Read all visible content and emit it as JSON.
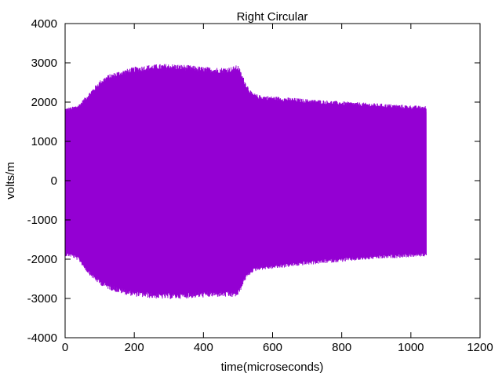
{
  "chart_data": {
    "type": "area",
    "title": "Right Circular",
    "xlabel": "time(microseconds)",
    "ylabel": "volts/m",
    "xlim": [
      0,
      1200
    ],
    "ylim": [
      -4000,
      4000
    ],
    "xticks": [
      0,
      200,
      400,
      600,
      800,
      1000,
      1200
    ],
    "yticks": [
      -4000,
      -3000,
      -2000,
      -1000,
      0,
      1000,
      2000,
      3000,
      4000
    ],
    "grid": false,
    "legend": "none",
    "series": [
      {
        "color": "#9400d3",
        "envelope_upper": {
          "x": [
            0,
            20,
            40,
            60,
            80,
            100,
            120,
            150,
            180,
            200,
            250,
            300,
            350,
            400,
            450,
            480,
            500,
            520,
            540,
            560,
            600,
            700,
            800,
            900,
            1000,
            1045
          ],
          "y": [
            1850,
            1880,
            1950,
            2150,
            2350,
            2550,
            2680,
            2780,
            2850,
            2900,
            2960,
            2980,
            2950,
            2900,
            2880,
            2900,
            2950,
            2550,
            2250,
            2180,
            2150,
            2080,
            2020,
            1970,
            1920,
            1900
          ]
        },
        "envelope_lower": {
          "x": [
            0,
            20,
            40,
            60,
            80,
            100,
            120,
            150,
            180,
            200,
            250,
            300,
            350,
            400,
            450,
            480,
            500,
            520,
            540,
            560,
            600,
            700,
            800,
            900,
            1000,
            1045
          ],
          "y": [
            -1920,
            -1950,
            -2050,
            -2300,
            -2500,
            -2650,
            -2750,
            -2850,
            -2920,
            -2950,
            -3000,
            -3020,
            -3000,
            -2980,
            -2960,
            -2980,
            -2950,
            -2550,
            -2350,
            -2280,
            -2250,
            -2150,
            -2070,
            -2000,
            -1950,
            -1930
          ]
        }
      }
    ]
  }
}
